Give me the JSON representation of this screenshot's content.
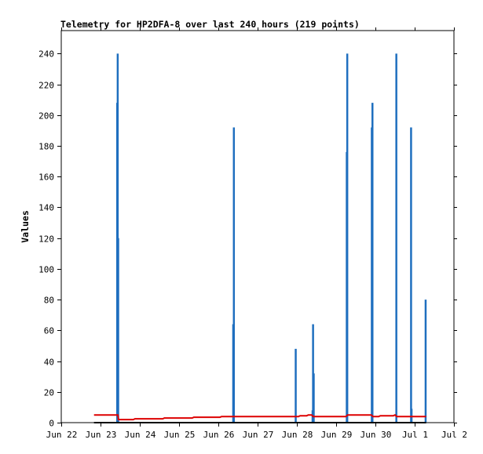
{
  "chart_data": {
    "type": "bar",
    "title": "Telemetry for HP2DFA-8 over last 240 hours (219 points)",
    "xlabel": "",
    "ylabel": "Values",
    "ylim": [
      0,
      255
    ],
    "xlim": [
      0,
      240
    ],
    "yticks": [
      0,
      20,
      40,
      60,
      80,
      100,
      120,
      140,
      160,
      180,
      200,
      220,
      240
    ],
    "xticks": [
      {
        "label": "Jun 22",
        "hour": 0
      },
      {
        "label": "Jun 23",
        "hour": 24
      },
      {
        "label": "Jun 24",
        "hour": 48
      },
      {
        "label": "Jun 25",
        "hour": 72
      },
      {
        "label": "Jun 26",
        "hour": 96
      },
      {
        "label": "Jun 27",
        "hour": 120
      },
      {
        "label": "Jun 28",
        "hour": 144
      },
      {
        "label": "Jun 29",
        "hour": 168
      },
      {
        "label": "Jun 30",
        "hour": 192
      },
      {
        "label": "Jul 1",
        "hour": 216
      },
      {
        "label": "Jul 2",
        "hour": 240
      }
    ],
    "grid": false,
    "series": [
      {
        "color": "#1f6fbf",
        "style": "spikes",
        "points": [
          [
            34.2,
            208
          ],
          [
            34.5,
            240
          ],
          [
            34.8,
            120
          ],
          [
            105.1,
            64
          ],
          [
            105.5,
            192
          ],
          [
            143.3,
            48
          ],
          [
            153.6,
            8
          ],
          [
            153.9,
            64
          ],
          [
            154.3,
            32
          ],
          [
            174.5,
            176
          ],
          [
            174.8,
            240
          ],
          [
            189.8,
            192
          ],
          [
            190.2,
            208
          ],
          [
            204.8,
            240
          ],
          [
            213.8,
            192
          ],
          [
            214.1,
            9
          ],
          [
            222.7,
            80
          ]
        ]
      },
      {
        "color": "#dd0000",
        "style": "step",
        "points": [
          [
            20.0,
            5
          ],
          [
            34.6,
            5
          ],
          [
            35.0,
            2
          ],
          [
            44.0,
            2
          ],
          [
            45.0,
            2.5
          ],
          [
            62.0,
            2.5
          ],
          [
            63.0,
            3
          ],
          [
            80.0,
            3
          ],
          [
            81.0,
            3.5
          ],
          [
            97.0,
            3.5
          ],
          [
            98.0,
            4
          ],
          [
            145.0,
            4
          ],
          [
            146.0,
            4.5
          ],
          [
            150.0,
            4.5
          ],
          [
            151.0,
            5
          ],
          [
            153.0,
            5
          ],
          [
            154.0,
            4
          ],
          [
            174.0,
            4
          ],
          [
            175.0,
            5
          ],
          [
            189.5,
            5
          ],
          [
            190.5,
            4
          ],
          [
            194.0,
            4
          ],
          [
            195.0,
            4.5
          ],
          [
            203.0,
            4.5
          ],
          [
            204.0,
            5
          ],
          [
            205.0,
            4
          ],
          [
            223.0,
            4
          ]
        ]
      },
      {
        "color": "#000000",
        "style": "step",
        "points": [
          [
            20.0,
            0
          ],
          [
            223.0,
            0
          ]
        ]
      }
    ]
  }
}
